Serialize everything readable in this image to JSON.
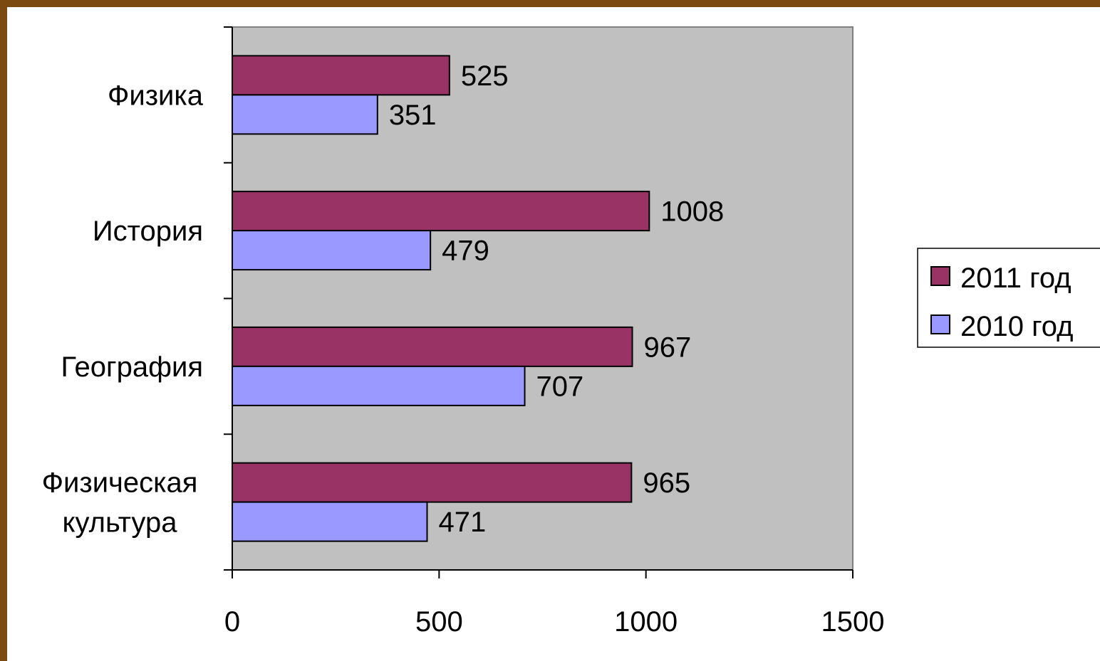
{
  "chart_data": {
    "type": "bar",
    "orientation": "horizontal",
    "categories": [
      "Физика",
      "История",
      "География",
      "Физическая культура"
    ],
    "category_lines": [
      [
        "Физика"
      ],
      [
        "История"
      ],
      [
        "География"
      ],
      [
        "Физическая",
        "культура"
      ]
    ],
    "series": [
      {
        "name": "2011 год",
        "color": "#993366",
        "values": [
          525,
          1008,
          967,
          965
        ]
      },
      {
        "name": "2010 год",
        "color": "#9999ff",
        "values": [
          351,
          479,
          707,
          471
        ]
      }
    ],
    "xlim": [
      0,
      1500
    ],
    "xticks": [
      "0",
      "500",
      "1000",
      "1500"
    ],
    "plot_background": "#c0c0c0",
    "grid": false,
    "data_labels": true,
    "legend": "right"
  }
}
